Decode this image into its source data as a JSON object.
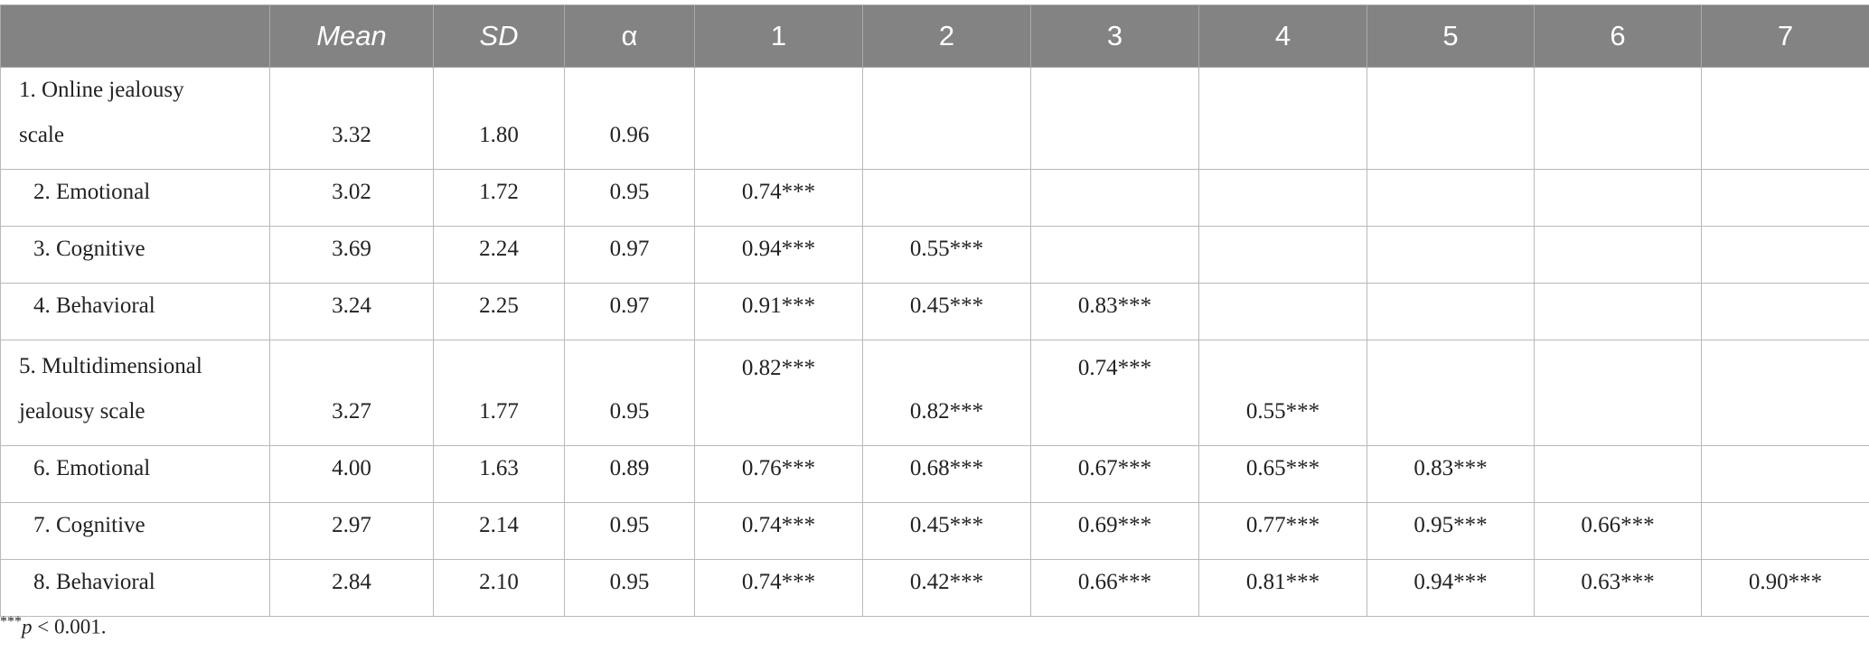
{
  "table": {
    "header": [
      "Mean",
      "SD",
      "α",
      "1",
      "2",
      "3",
      "4",
      "5",
      "6",
      "7"
    ],
    "rows": [
      [
        "1. Online jealousy scale",
        "3.32",
        "1.80",
        "0.96",
        null,
        null,
        null,
        null,
        null,
        null,
        null
      ],
      [
        "2. Emotional",
        "3.02",
        "1.72",
        "0.95",
        "0.74***",
        null,
        null,
        null,
        null,
        null,
        null
      ],
      [
        "3. Cognitive",
        "3.69",
        "2.24",
        "0.97",
        "0.94***",
        "0.55***",
        null,
        null,
        null,
        null,
        null
      ],
      [
        "4. Behavioral",
        "3.24",
        "2.25",
        "0.97",
        "0.91***",
        "0.45***",
        "0.83***",
        null,
        null,
        null,
        null
      ],
      [
        "5. Multidimensional jealousy scale",
        "3.27",
        "1.77",
        "0.95",
        "0.82***",
        "0.82***",
        "0.74***",
        "0.55***",
        null,
        null,
        null
      ],
      [
        "6. Emotional",
        "4.00",
        "1.63",
        "0.89",
        "0.76***",
        "0.68***",
        "0.67***",
        "0.65***",
        "0.83***",
        null,
        null
      ],
      [
        "7. Cognitive",
        "2.97",
        "2.14",
        "0.95",
        "0.74***",
        "0.45***",
        "0.69***",
        "0.77***",
        "0.95***",
        "0.66***",
        null
      ],
      [
        "8. Behavioral",
        "2.84",
        "2.10",
        "0.95",
        "0.74***",
        "0.42***",
        "0.66***",
        "0.81***",
        "0.94***",
        "0.63***",
        "0.90***"
      ]
    ]
  },
  "footnote": {
    "marker": "***",
    "symbol": "p",
    "text": " < 0.001."
  }
}
